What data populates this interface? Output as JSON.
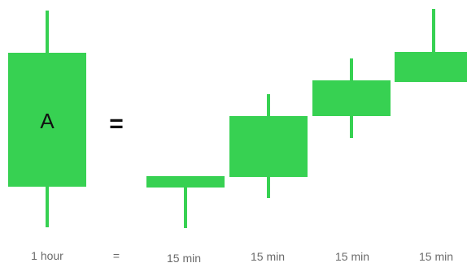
{
  "colors": {
    "candle": "#37d152",
    "text": "#111111",
    "caption": "#6b6b6b"
  },
  "big_candle": {
    "label": "A"
  },
  "equals_symbol": "=",
  "captions": {
    "big": "1 hour",
    "equals": "=",
    "small": [
      "15 min",
      "15 min",
      "15 min",
      "15 min"
    ]
  }
}
